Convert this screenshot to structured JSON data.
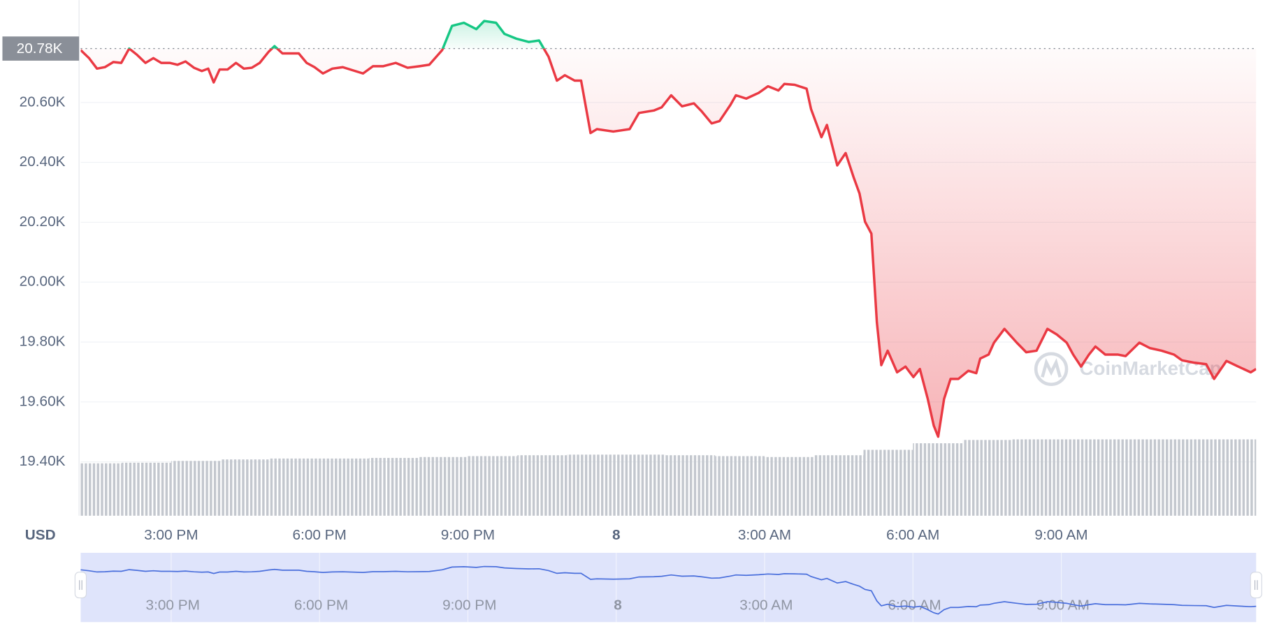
{
  "chart_data": {
    "type": "line",
    "currency": "USD",
    "watermark": "CoinMarketCap",
    "x": [
      13.17,
      13.34,
      13.5,
      13.66,
      13.83,
      13.99,
      14.15,
      14.31,
      14.48,
      14.64,
      14.8,
      14.97,
      15.13,
      15.29,
      15.46,
      15.62,
      15.75,
      15.86,
      15.98,
      16.14,
      16.31,
      16.47,
      16.63,
      16.79,
      16.97,
      17.09,
      17.25,
      17.58,
      17.74,
      17.9,
      18.07,
      18.26,
      18.47,
      18.72,
      18.88,
      19.08,
      19.29,
      19.54,
      19.78,
      20.02,
      20.22,
      20.48,
      20.68,
      20.92,
      21.17,
      21.33,
      21.57,
      21.74,
      21.98,
      22.23,
      22.44,
      22.63,
      22.8,
      22.96,
      23.16,
      23.29,
      23.48,
      23.61,
      23.94,
      24.27,
      24.46,
      24.76,
      24.92,
      25.11,
      25.33,
      25.57,
      25.73,
      25.93,
      26.09,
      26.31,
      26.42,
      26.63,
      26.88,
      27.07,
      27.28,
      27.4,
      27.61,
      27.85,
      27.94,
      28.15,
      28.26,
      28.47,
      28.64,
      28.8,
      28.92,
      29.03,
      29.16,
      29.27,
      29.36,
      29.49,
      29.68,
      29.85,
      30.01,
      30.14,
      30.3,
      30.42,
      30.51,
      30.63,
      30.76,
      30.92,
      31.12,
      31.28,
      31.36,
      31.53,
      31.64,
      31.85,
      32.1,
      32.29,
      32.5,
      32.72,
      32.91,
      33.11,
      33.24,
      33.4,
      33.56,
      33.69,
      33.89,
      34.14,
      34.3,
      34.58,
      34.79,
      35.03,
      35.28,
      35.44,
      35.69,
      35.93,
      36.09,
      36.34,
      36.58,
      36.83,
      36.94
    ],
    "values": [
      20775,
      20748,
      20713,
      20718,
      20735,
      20732,
      20780,
      20759,
      20732,
      20748,
      20732,
      20732,
      20726,
      20737,
      20716,
      20705,
      20713,
      20667,
      20710,
      20710,
      20732,
      20713,
      20716,
      20732,
      20769,
      20788,
      20764,
      20764,
      20732,
      20718,
      20697,
      20713,
      20718,
      20705,
      20697,
      20721,
      20721,
      20732,
      20716,
      20721,
      20726,
      20775,
      20856,
      20866,
      20845,
      20872,
      20866,
      20829,
      20813,
      20802,
      20807,
      20753,
      20673,
      20691,
      20673,
      20673,
      20498,
      20511,
      20503,
      20511,
      20565,
      20573,
      20584,
      20624,
      20587,
      20597,
      20570,
      20530,
      20538,
      20592,
      20624,
      20613,
      20632,
      20654,
      20640,
      20662,
      20659,
      20646,
      20578,
      20484,
      20525,
      20390,
      20431,
      20350,
      20296,
      20202,
      20162,
      19866,
      19723,
      19771,
      19699,
      19718,
      19683,
      19710,
      19610,
      19521,
      19484,
      19610,
      19677,
      19677,
      19704,
      19696,
      19745,
      19758,
      19798,
      19844,
      19798,
      19766,
      19771,
      19844,
      19825,
      19798,
      19758,
      19718,
      19758,
      19785,
      19758,
      19758,
      19753,
      19798,
      19780,
      19771,
      19758,
      19739,
      19731,
      19726,
      19677,
      19737,
      19718,
      19699,
      19710
    ],
    "colors": {
      "above": "#16c784",
      "below": "#ea3943"
    },
    "reference": {
      "value": 20780,
      "label": "20.78K"
    },
    "xlim": [
      13.17,
      36.94
    ],
    "xticks": [
      {
        "value": 15,
        "label": "3:00 PM"
      },
      {
        "value": 18,
        "label": "6:00 PM"
      },
      {
        "value": 21,
        "label": "9:00 PM"
      },
      {
        "value": 24,
        "label": "8"
      },
      {
        "value": 27,
        "label": "3:00 AM"
      },
      {
        "value": 30,
        "label": "6:00 AM"
      },
      {
        "value": 33,
        "label": "9:00 AM"
      }
    ],
    "ylim": [
      19220,
      20942
    ],
    "yticks": [
      {
        "value": 19400,
        "label": "19.40K"
      },
      {
        "value": 19600,
        "label": "19.60K"
      },
      {
        "value": 19800,
        "label": "19.80K"
      },
      {
        "value": 20000,
        "label": "20.00K"
      },
      {
        "value": 20200,
        "label": "20.20K"
      },
      {
        "value": 20400,
        "label": "20.40K"
      },
      {
        "value": 20600,
        "label": "20.60K"
      }
    ],
    "grid": true,
    "volume": {
      "color": "#c3c7ce",
      "x": [
        13.5,
        14.5,
        15.5,
        16.5,
        17.5,
        18.5,
        19.5,
        20.5,
        21.5,
        22.5,
        23.5,
        24.5,
        25.5,
        26.5,
        27.5,
        28.5,
        29.5,
        30.5,
        31.5,
        32.5,
        33.5,
        34.5,
        35.5,
        36.5
      ],
      "values": [
        19395,
        19397,
        19403,
        19408,
        19411,
        19411,
        19413,
        19416,
        19419,
        19422,
        19424,
        19424,
        19422,
        19419,
        19416,
        19422,
        19440,
        19462,
        19473,
        19475,
        19475,
        19475,
        19475,
        19475
      ]
    },
    "navigator": {
      "color": "#4a6fdc",
      "fill": "#dfe4fb"
    }
  }
}
